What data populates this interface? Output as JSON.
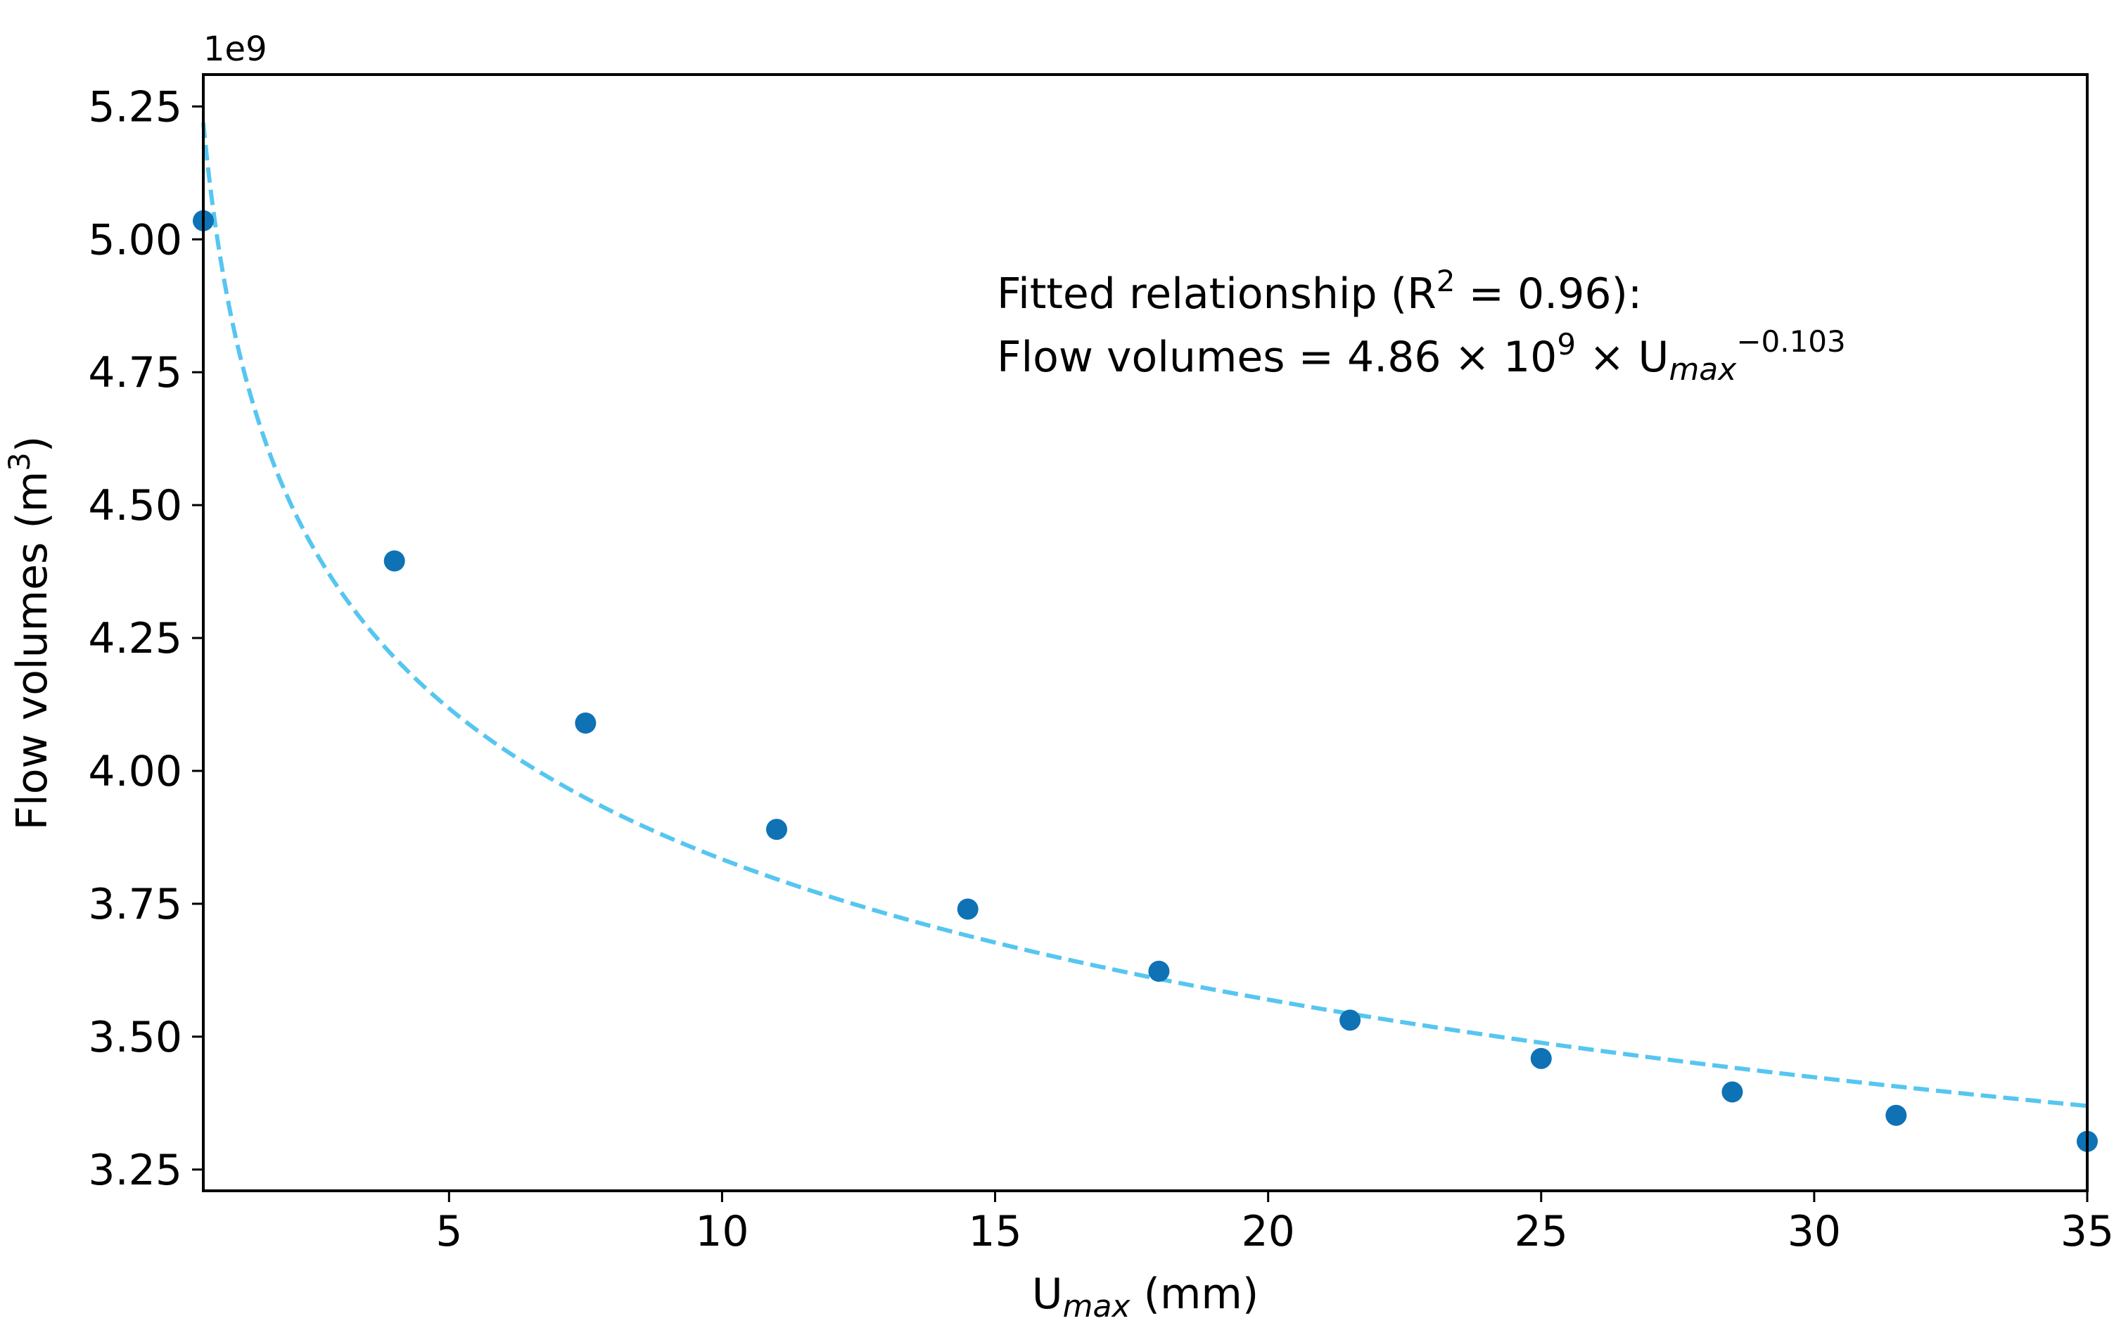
{
  "chart_data": {
    "type": "scatter",
    "title": "",
    "xlabel": {
      "base": "U",
      "sub": "max",
      "unit": " (mm)"
    },
    "ylabel": {
      "prefix": "Flow volumes (m",
      "sup": "3",
      "suffix": ")"
    },
    "y_offset_label": "1e9",
    "xlim": [
      0.5,
      35
    ],
    "ylim": [
      3.21,
      5.31
    ],
    "xticks": [
      5,
      10,
      15,
      20,
      25,
      30,
      35
    ],
    "xtick_labels": [
      "5",
      "10",
      "15",
      "20",
      "25",
      "30",
      "35"
    ],
    "yticks": [
      3.25,
      3.5,
      3.75,
      4.0,
      4.25,
      4.5,
      4.75,
      5.0,
      5.25
    ],
    "ytick_labels": [
      "3.25",
      "3.50",
      "3.75",
      "4.00",
      "4.25",
      "4.50",
      "4.75",
      "5.00",
      "5.25"
    ],
    "grid": false,
    "series": [
      {
        "name": "Flow volumes",
        "kind": "scatter",
        "color": "#0e72b5",
        "x": [
          0.5,
          4,
          7.5,
          11,
          14.5,
          18,
          21.5,
          25,
          28.5,
          31.5,
          35
        ],
        "y": [
          5.035,
          4.395,
          4.09,
          3.89,
          3.74,
          3.623,
          3.531,
          3.459,
          3.396,
          3.352,
          3.303
        ]
      },
      {
        "name": "Fitted relationship",
        "kind": "line",
        "style": "dashed",
        "color": "#56c6f0",
        "fit": {
          "coefficient": 4.86,
          "exponent": -0.103
        },
        "x_range": [
          0.5,
          35
        ]
      }
    ],
    "annotation": {
      "line1": {
        "prefix": "Fitted relationship (R",
        "sup": "2",
        "suffix": " = 0.96):"
      },
      "line2": {
        "prefix": "Flow volumes = 4.86 × 10",
        "sup": "9",
        "mid": " × U",
        "sub": "max",
        "exp": "−0.103"
      }
    }
  }
}
